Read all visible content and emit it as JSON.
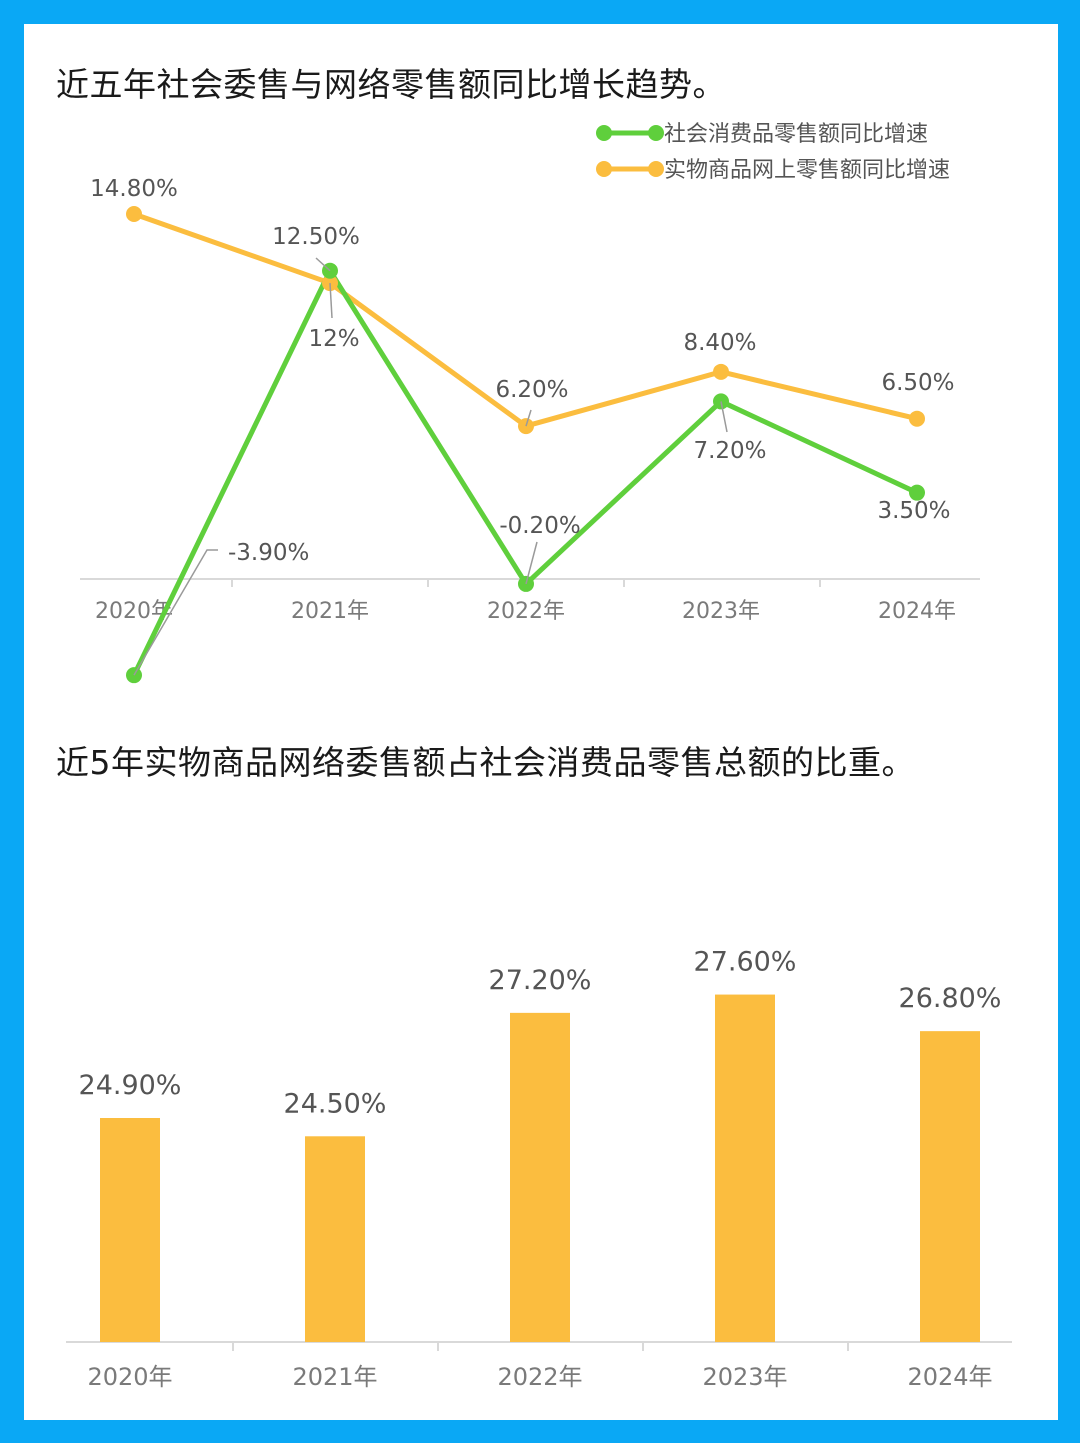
{
  "colors": {
    "border": "#0aa8f5",
    "green": "#5fcf3c",
    "orange": "#fbbd3f"
  },
  "titles": {
    "line_chart": "近五年社会委售与网络零售额同比增长趋势。",
    "bar_chart": "近5年实物商品网络委售额占社会消费品零售总额的比重。"
  },
  "chart_data": [
    {
      "type": "line",
      "title": "近五年社会委售与网络零售额同比增长趋势。",
      "categories": [
        "2020年",
        "2021年",
        "2022年",
        "2023年",
        "2024年"
      ],
      "legend_position": "top-right",
      "ylim": [
        -4.5,
        16
      ],
      "grid": false,
      "series": [
        {
          "name": "社会消费品零售额同比增速",
          "color": "#5fcf3c",
          "values": [
            -3.9,
            12.5,
            -0.2,
            7.2,
            3.5
          ],
          "labels": [
            "-3.90%",
            "12.50%",
            "-0.20%",
            "7.20%",
            "3.50%"
          ]
        },
        {
          "name": "实物商品网上零售额同比增速",
          "color": "#fbbd3f",
          "values": [
            14.8,
            12,
            6.2,
            8.4,
            6.5
          ],
          "labels": [
            "14.80%",
            "12%",
            "6.20%",
            "8.40%",
            "6.50%"
          ]
        }
      ]
    },
    {
      "type": "bar",
      "title": "近5年实物商品网络委售额占社会消费品零售总额的比重。",
      "categories": [
        "2020年",
        "2021年",
        "2022年",
        "2023年",
        "2024年"
      ],
      "values": [
        24.9,
        24.5,
        27.2,
        27.6,
        26.8
      ],
      "labels": [
        "24.90%",
        "24.50%",
        "27.20%",
        "27.60%",
        "26.80%"
      ],
      "color": "#fbbd3f",
      "ylim": [
        0,
        30
      ],
      "grid": false
    }
  ]
}
